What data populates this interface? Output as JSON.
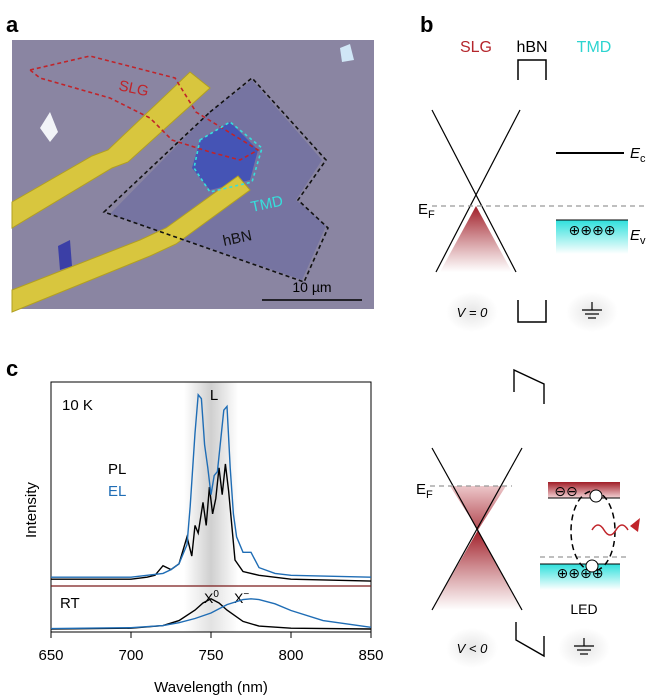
{
  "panels": {
    "a": {
      "letter": "a",
      "labels": {
        "slg": "SLG",
        "tmd": "TMD",
        "hbn": "hBN"
      },
      "scale_bar": "10 µm",
      "colors": {
        "substrate": "#8b86a4",
        "electrode": "#d7c43a",
        "slg_outline": "#c0242a",
        "tmd_outline": "#35e0dc",
        "hbn_outline": "#111111"
      }
    },
    "b": {
      "letter": "b",
      "headers": {
        "slg": "SLG",
        "hbn": "hBN",
        "tmd": "TMD"
      },
      "header_colors": {
        "slg": "#b5262c",
        "hbn": "#000000",
        "tmd": "#2dd4d0"
      },
      "fermi_label": "E",
      "fermi_sub": "F",
      "ec_label": "E",
      "ec_sub": "c",
      "ev_label": "E",
      "ev_sub": "v",
      "holes": "⊕⊕⊕⊕",
      "bias_label": "V = 0",
      "ground_icon": "ground-icon"
    },
    "c": {
      "letter": "c",
      "temperature": "10 K",
      "window_label": "L",
      "legend_pl": "PL",
      "legend_el": "EL",
      "ylabel": "Intensity",
      "xlabel": "Wavelength (nm)",
      "rt_label": "RT",
      "x0_label": "X",
      "x0_sup": "0",
      "xminus_label": "X",
      "xminus_sup": "−",
      "xticks": [
        "650",
        "700",
        "750",
        "800",
        "850"
      ]
    },
    "d": {
      "fermi_label": "E",
      "fermi_sub": "F",
      "electrons": "⊖⊖",
      "holes": "⊕⊕⊕⊕",
      "led_label": "LED",
      "bias_label": "V < 0",
      "ground_icon": "ground-icon"
    }
  },
  "chart_data": [
    {
      "type": "line",
      "title": "10 K",
      "xlabel": "Wavelength (nm)",
      "ylabel": "Intensity",
      "xlim": [
        650,
        850
      ],
      "highlight_band": [
        735,
        765
      ],
      "series": [
        {
          "name": "PL",
          "color": "#000000",
          "x": [
            650,
            700,
            710,
            715,
            720,
            725,
            730,
            735,
            738,
            740,
            742,
            745,
            747,
            749,
            751,
            753,
            755,
            757,
            759,
            761,
            763,
            765,
            770,
            780,
            800,
            850
          ],
          "y": [
            0.02,
            0.02,
            0.03,
            0.04,
            0.09,
            0.07,
            0.1,
            0.24,
            0.14,
            0.3,
            0.26,
            0.42,
            0.3,
            0.5,
            0.36,
            0.44,
            0.6,
            0.46,
            0.62,
            0.48,
            0.3,
            0.12,
            0.06,
            0.04,
            0.02,
            0.01
          ]
        },
        {
          "name": "EL",
          "color": "#1f6db5",
          "x": [
            650,
            700,
            720,
            725,
            730,
            735,
            737,
            740,
            742,
            744,
            746,
            748,
            750,
            752,
            754,
            756,
            758,
            760,
            762,
            764,
            766,
            770,
            775,
            780,
            790,
            800,
            850
          ],
          "y": [
            0.03,
            0.03,
            0.05,
            0.07,
            0.1,
            0.2,
            0.4,
            0.78,
            0.98,
            0.96,
            0.72,
            0.6,
            0.46,
            0.56,
            0.58,
            0.74,
            0.9,
            0.92,
            0.6,
            0.36,
            0.24,
            0.16,
            0.16,
            0.08,
            0.05,
            0.04,
            0.03
          ]
        }
      ]
    },
    {
      "type": "line",
      "title": "RT",
      "xlabel": "Wavelength (nm)",
      "xlim": [
        650,
        850
      ],
      "series": [
        {
          "color": "#000000",
          "x": [
            650,
            700,
            720,
            730,
            740,
            745,
            750,
            755,
            760,
            770,
            780,
            800,
            850
          ],
          "y": [
            0.0,
            0.02,
            0.08,
            0.2,
            0.45,
            0.62,
            0.72,
            0.62,
            0.45,
            0.18,
            0.07,
            0.02,
            0.0
          ]
        },
        {
          "color": "#1f6db5",
          "x": [
            650,
            700,
            720,
            730,
            740,
            750,
            760,
            770,
            775,
            780,
            790,
            800,
            820,
            850
          ],
          "y": [
            0.01,
            0.03,
            0.08,
            0.15,
            0.25,
            0.38,
            0.58,
            0.7,
            0.72,
            0.7,
            0.6,
            0.44,
            0.2,
            0.04
          ]
        }
      ]
    }
  ]
}
